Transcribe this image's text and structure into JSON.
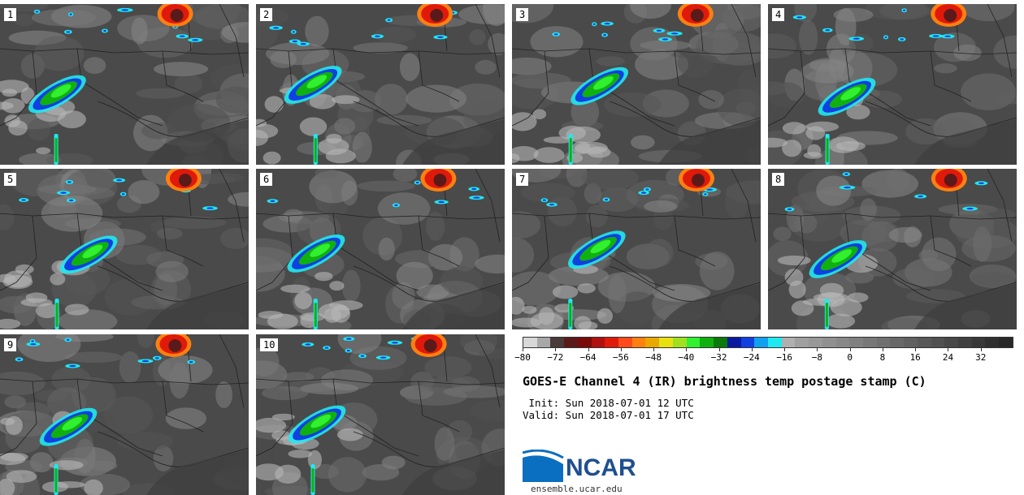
{
  "panels": [
    {
      "label": "1"
    },
    {
      "label": "2"
    },
    {
      "label": "3"
    },
    {
      "label": "4"
    },
    {
      "label": "5"
    },
    {
      "label": "6"
    },
    {
      "label": "7"
    },
    {
      "label": "8"
    },
    {
      "label": "9"
    },
    {
      "label": "10"
    }
  ],
  "colorbar": {
    "colors": [
      "#d8d8d8",
      "#a8a8a8",
      "#4a3a3a",
      "#5a1a1a",
      "#7a0a0a",
      "#b01010",
      "#e01a0a",
      "#ff4a1a",
      "#ff7f10",
      "#e8a800",
      "#e8e010",
      "#a0e020",
      "#30f030",
      "#10b010",
      "#0a7a0a",
      "#0a1aa0",
      "#1040e0",
      "#10a0f0",
      "#20e8f0",
      "#b0b0b0",
      "#a0a0a0",
      "#989898",
      "#909090",
      "#888888",
      "#808080",
      "#787878",
      "#707070",
      "#686868",
      "#606060",
      "#585858",
      "#505050",
      "#484848",
      "#404040",
      "#383838",
      "#303030",
      "#282828"
    ],
    "tick_labels": [
      "−80",
      "−72",
      "−64",
      "−56",
      "−48",
      "−40",
      "−32",
      "−24",
      "−16",
      "−8",
      "0",
      "8",
      "16",
      "24",
      "32"
    ],
    "min": -80,
    "max": 40
  },
  "title": "GOES-E Channel 4 (IR) brightness temp postage stamp (C)",
  "init": " Init: Sun 2018-07-01 12 UTC",
  "valid": "Valid: Sun 2018-07-01 17 UTC",
  "logo": {
    "text": "NCAR",
    "url": "ensemble.ucar.edu"
  }
}
